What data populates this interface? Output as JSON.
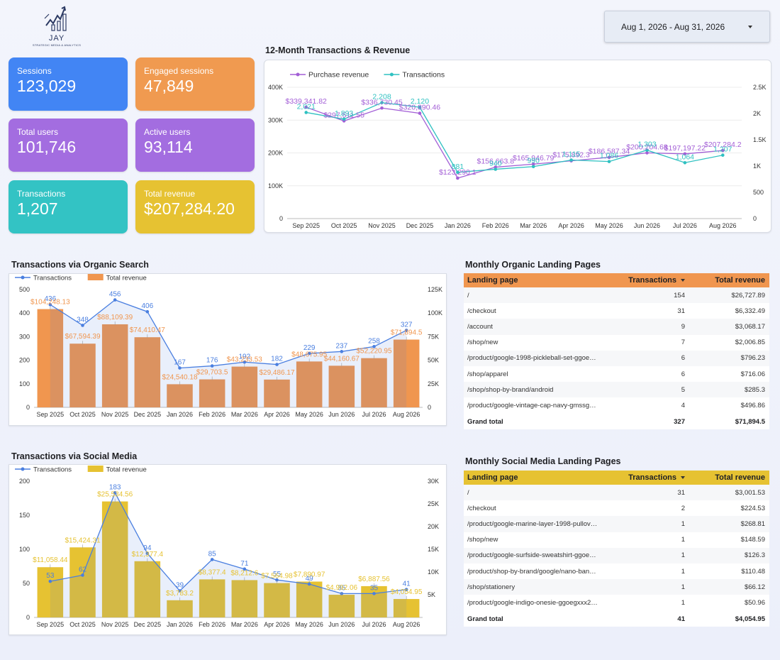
{
  "logo": {
    "name": "JAY",
    "tagline": "STRATEGIC MEDIA & ANALYTICS"
  },
  "date_range": {
    "label": "Aug 1, 2026 - Aug 31, 2026"
  },
  "kpis": [
    {
      "label": "Sessions",
      "value": "123,029",
      "color": "#4285f4"
    },
    {
      "label": "Engaged sessions",
      "value": "47,849",
      "color": "#f09a50"
    },
    {
      "label": "Total users",
      "value": "101,746",
      "color": "#a36de0"
    },
    {
      "label": "Active users",
      "value": "93,114",
      "color": "#a36de0"
    },
    {
      "label": "Transactions",
      "value": "1,207",
      "color": "#33c3c4"
    },
    {
      "label": "Total revenue",
      "value": "$207,284.20",
      "color": "#e6c232"
    }
  ],
  "sections": {
    "revenue_title": "12-Month Transactions & Revenue",
    "organic_title": "Transactions via Organic Search",
    "social_title": "Transactions via Social Media",
    "organic_pages_title": "Monthly Organic Landing Pages",
    "social_pages_title": "Monthly Social Media Landing Pages"
  },
  "chart_data": [
    {
      "id": "revenue",
      "type": "line",
      "title": "12-Month Transactions & Revenue",
      "categories": [
        "Sep 2025",
        "Oct 2025",
        "Nov 2025",
        "Dec 2025",
        "Jan 2026",
        "Feb 2026",
        "Mar 2026",
        "Apr 2026",
        "May 2026",
        "Jun 2026",
        "Jul 2026",
        "Aug 2026"
      ],
      "legend_position": "top-left",
      "series": [
        {
          "name": "Purchase revenue",
          "axis": "left",
          "color": "#a35fd6",
          "values": [
            339341.82,
            297511.55,
            336730.45,
            320890.46,
            123290.1,
            156663.8,
            165946.79,
            175892.3,
            186587.34,
            200204.68,
            197197.22,
            207284.2
          ],
          "labels": [
            "$339,341.82",
            "$297,511.55",
            "$336,730.45",
            "$320,890.46",
            "$123,290.1",
            "$156,663.8",
            "$165,946.79",
            "$175,892.3",
            "$186,587.34",
            "$200,204.68",
            "$197,197.22",
            "$207,284.2"
          ]
        },
        {
          "name": "Transactions",
          "axis": "right",
          "color": "#2fc1c1",
          "values": [
            2021,
            1893,
            2208,
            2120,
            881,
            940,
            990,
            1115,
            1086,
            1303,
            1064,
            1207
          ],
          "labels": [
            "2,021",
            "1,893",
            "2,208",
            "2,120",
            "881",
            "940",
            "990",
            "1,115",
            "1,086",
            "1,303",
            "1,064",
            "1,207"
          ]
        }
      ],
      "y_left": {
        "range": [
          0,
          400000
        ],
        "ticks": [
          0,
          100000,
          200000,
          300000,
          400000
        ],
        "tick_labels": [
          "0",
          "100K",
          "200K",
          "300K",
          "400K"
        ]
      },
      "y_right": {
        "range": [
          0,
          2500
        ],
        "ticks": [
          0,
          500,
          1000,
          1500,
          2000,
          2500
        ],
        "tick_labels": [
          "0",
          "500",
          "1K",
          "1.5K",
          "2K",
          "2.5K"
        ]
      }
    },
    {
      "id": "organic",
      "type": "bar",
      "title": "Transactions via Organic Search",
      "categories": [
        "Sep 2025",
        "Oct 2025",
        "Nov 2025",
        "Dec 2025",
        "Jan 2026",
        "Feb 2026",
        "Mar 2026",
        "Apr 2026",
        "May 2026",
        "Jun 2026",
        "Jul 2026",
        "Aug 2026"
      ],
      "legend_position": "top-left",
      "series": [
        {
          "name": "Transactions",
          "kind": "line",
          "axis": "left",
          "color": "#4a7fe0",
          "values": [
            436,
            348,
            456,
            406,
            167,
            176,
            192,
            182,
            229,
            237,
            258,
            327
          ],
          "labels": [
            "436",
            "348",
            "456",
            "406",
            "167",
            "176",
            "192",
            "182",
            "229",
            "237",
            "258",
            "327"
          ]
        },
        {
          "name": "Total revenue",
          "kind": "bar",
          "axis": "right",
          "color": "#f0964f",
          "values": [
            104248.13,
            67594.39,
            88109.39,
            74410.47,
            24540.18,
            29703.5,
            43233.53,
            29486.17,
            48675.95,
            44160.67,
            52220.95,
            71894.5
          ],
          "labels": [
            "$104,248.13",
            "$67,594.39",
            "$88,109.39",
            "$74,410.47",
            "$24,540.18",
            "$29,703.5",
            "$43,233.53",
            "$29,486.17",
            "$48,675.95",
            "$44,160.67",
            "$52,220.95",
            "$71,894.5"
          ]
        }
      ],
      "y_left": {
        "range": [
          0,
          500
        ],
        "ticks": [
          0,
          100,
          200,
          300,
          400,
          500
        ],
        "tick_labels": [
          "0",
          "100",
          "200",
          "300",
          "400",
          "500"
        ]
      },
      "y_right": {
        "range": [
          0,
          125000
        ],
        "ticks": [
          0,
          25000,
          50000,
          75000,
          100000,
          125000
        ],
        "tick_labels": [
          "0",
          "25K",
          "50K",
          "75K",
          "100K",
          "125K"
        ]
      }
    },
    {
      "id": "social",
      "type": "bar",
      "title": "Transactions via Social Media",
      "categories": [
        "Sep 2025",
        "Oct 2025",
        "Nov 2025",
        "Dec 2025",
        "Jan 2026",
        "Feb 2026",
        "Mar 2026",
        "Apr 2026",
        "May 2026",
        "Jun 2026",
        "Jul 2026",
        "Aug 2026"
      ],
      "legend_position": "top-left",
      "series": [
        {
          "name": "Transactions",
          "kind": "line",
          "axis": "left",
          "color": "#4a7fe0",
          "values": [
            53,
            62,
            183,
            94,
            39,
            85,
            71,
            55,
            49,
            35,
            35,
            41
          ],
          "labels": [
            "53",
            "62",
            "183",
            "94",
            "39",
            "85",
            "71",
            "55",
            "49",
            "35",
            "35",
            "41"
          ]
        },
        {
          "name": "Total revenue",
          "kind": "bar",
          "axis": "right",
          "color": "#e6c232",
          "values": [
            11058.44,
            15424.31,
            25534.56,
            12377.4,
            3783.2,
            8377.4,
            8212.6,
            7564.98,
            7890.97,
            4992.06,
            6887.56,
            4054.95
          ],
          "labels": [
            "$11,058.44",
            "$15,424.31",
            "$25,534.56",
            "$12,377.4",
            "$3,783.2",
            "$8,377.4",
            "$8,212.6",
            "$7,564.98",
            "$7,890.97",
            "$4,992.06",
            "$6,887.56",
            "$4,054.95"
          ]
        }
      ],
      "y_left": {
        "range": [
          0,
          200
        ],
        "ticks": [
          0,
          50,
          100,
          150,
          200
        ],
        "tick_labels": [
          "0",
          "50",
          "100",
          "150",
          "200"
        ]
      },
      "y_right": {
        "range": [
          0,
          30000
        ],
        "ticks": [
          5000,
          10000,
          15000,
          20000,
          25000,
          30000
        ],
        "tick_labels": [
          "5K",
          "10K",
          "15K",
          "20K",
          "25K",
          "30K"
        ]
      }
    }
  ],
  "organic_table": {
    "header_color": "#f0964f",
    "headers": {
      "page": "Landing page",
      "tx": "Transactions",
      "rev": "Total revenue"
    },
    "rows": [
      {
        "page": "/",
        "tx": "154",
        "rev": "$26,727.89"
      },
      {
        "page": "/checkout",
        "tx": "31",
        "rev": "$6,332.49"
      },
      {
        "page": "/account",
        "tx": "9",
        "rev": "$3,068.17"
      },
      {
        "page": "/shop/new",
        "tx": "7",
        "rev": "$2,006.85"
      },
      {
        "page": "/product/google-1998-pickleball-set-ggoe…",
        "tx": "6",
        "rev": "$796.23"
      },
      {
        "page": "/shop/apparel",
        "tx": "6",
        "rev": "$716.06"
      },
      {
        "page": "/shop/shop-by-brand/android",
        "tx": "5",
        "rev": "$285.3"
      },
      {
        "page": "/product/google-vintage-cap-navy-gmssg…",
        "tx": "4",
        "rev": "$496.86"
      }
    ],
    "total": {
      "label": "Grand total",
      "tx": "327",
      "rev": "$71,894.5"
    }
  },
  "social_table": {
    "header_color": "#e6c232",
    "headers": {
      "page": "Landing page",
      "tx": "Transactions",
      "rev": "Total revenue"
    },
    "rows": [
      {
        "page": "/",
        "tx": "31",
        "rev": "$3,001.53"
      },
      {
        "page": "/checkout",
        "tx": "2",
        "rev": "$224.53"
      },
      {
        "page": "/product/google-marine-layer-1998-pullov…",
        "tx": "1",
        "rev": "$268.81"
      },
      {
        "page": "/shop/new",
        "tx": "1",
        "rev": "$148.59"
      },
      {
        "page": "/product/google-surfside-sweatshirt-ggoe…",
        "tx": "1",
        "rev": "$126.3"
      },
      {
        "page": "/product/shop-by-brand/google/nano-ban…",
        "tx": "1",
        "rev": "$110.48"
      },
      {
        "page": "/shop/stationery",
        "tx": "1",
        "rev": "$66.12"
      },
      {
        "page": "/product/google-indigo-onesie-ggoegxxx2…",
        "tx": "1",
        "rev": "$50.96"
      }
    ],
    "total": {
      "label": "Grand total",
      "tx": "41",
      "rev": "$4,054.95"
    }
  }
}
